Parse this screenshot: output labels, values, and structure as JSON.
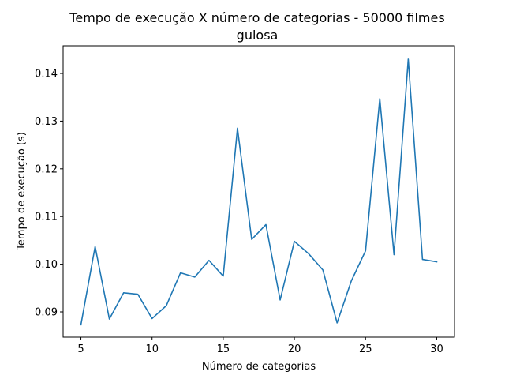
{
  "chart_data": {
    "type": "line",
    "title": "Tempo de execução X número de categorias - 50000 filmes",
    "subtitle": "gulosa",
    "xlabel": "Número de categorias",
    "ylabel": "Tempo de execução (s)",
    "xlim": [
      3.75,
      31.25
    ],
    "ylim": [
      0.0847,
      0.1458
    ],
    "xticks": [
      5,
      10,
      15,
      20,
      25,
      30
    ],
    "xtick_labels": [
      "5",
      "10",
      "15",
      "20",
      "25",
      "30"
    ],
    "yticks": [
      0.09,
      0.1,
      0.11,
      0.12,
      0.13,
      0.14
    ],
    "ytick_labels": [
      "0.09",
      "0.10",
      "0.11",
      "0.12",
      "0.13",
      "0.14"
    ],
    "grid": false,
    "line_color": "#1f77b4",
    "series": [
      {
        "x": [
          5,
          6,
          7,
          8,
          9,
          10,
          11,
          12,
          13,
          14,
          15,
          16,
          17,
          18,
          19,
          20,
          21,
          22,
          23,
          24,
          25,
          26,
          27,
          28,
          29,
          30
        ],
        "values": [
          0.0873,
          0.1037,
          0.0885,
          0.094,
          0.0937,
          0.0886,
          0.0913,
          0.0982,
          0.0973,
          0.1008,
          0.0975,
          0.1285,
          0.1052,
          0.1083,
          0.0925,
          0.1048,
          0.1022,
          0.0988,
          0.0877,
          0.0965,
          0.1028,
          0.1347,
          0.102,
          0.143,
          0.101,
          0.1005
        ]
      }
    ]
  }
}
